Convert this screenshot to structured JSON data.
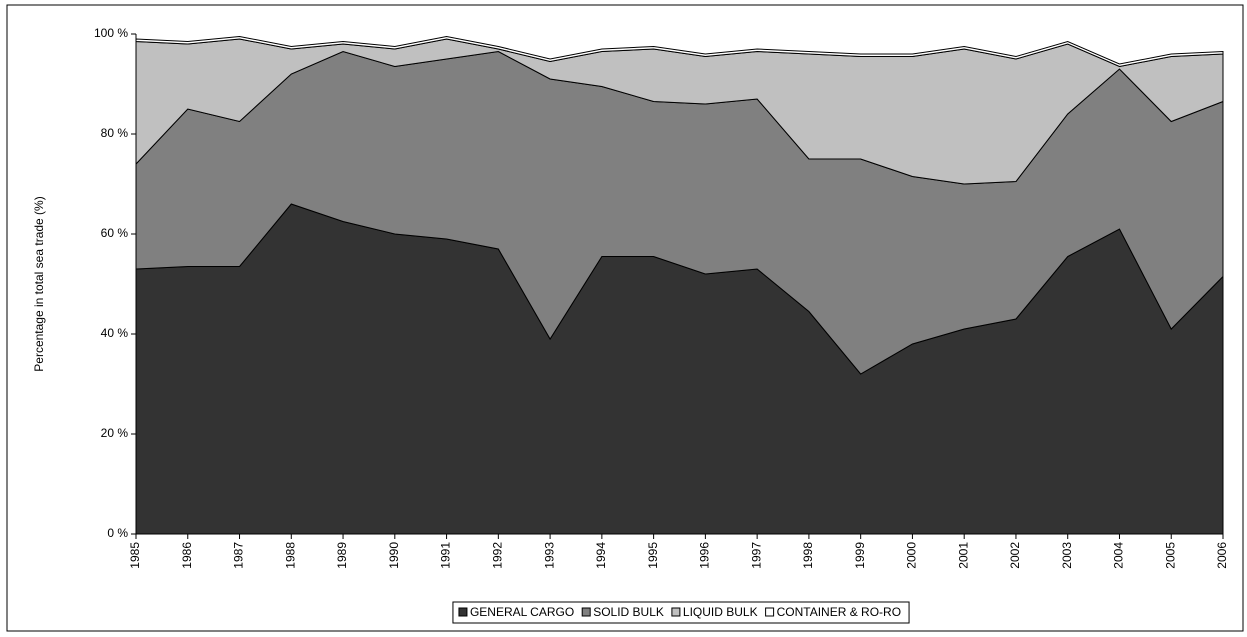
{
  "chart_data": {
    "type": "stacked_area",
    "y_label": "Percentage in total sea trade (%)",
    "categories": [
      "1985",
      "1986",
      "1987",
      "1988",
      "1989",
      "1990",
      "1991",
      "1992",
      "1993",
      "1994",
      "1995",
      "1996",
      "1997",
      "1998",
      "1999",
      "2000",
      "2001",
      "2002",
      "2003",
      "2004",
      "2005",
      "2006"
    ],
    "series": [
      {
        "name": "GENERAL CARGO",
        "color": "#333333",
        "values": [
          53,
          53.5,
          53.5,
          66,
          62.5,
          60,
          59,
          57,
          39,
          55.5,
          55.5,
          52,
          53,
          44.5,
          32,
          38,
          41,
          43,
          55.5,
          61,
          41,
          51.5
        ]
      },
      {
        "name": "SOLID BULK",
        "color": "#808080",
        "values": [
          21,
          31.5,
          29,
          26,
          34,
          33.5,
          36,
          39.5,
          52,
          34,
          31,
          34,
          34,
          30.5,
          43,
          33.5,
          29,
          27.5,
          28.5,
          32,
          41.5,
          35
        ]
      },
      {
        "name": "LIQUID BULK",
        "color": "#c0c0c0",
        "values": [
          24.5,
          13,
          16.5,
          5,
          1.5,
          3.5,
          4,
          0.5,
          3.5,
          7,
          10.5,
          9.5,
          9.5,
          21,
          20.5,
          24,
          27,
          24.5,
          14,
          0.5,
          13,
          9.5
        ]
      },
      {
        "name": "CONTAINER & RO-RO",
        "color": "#ffffff",
        "values": [
          0.5,
          0.5,
          0.5,
          0.5,
          0.5,
          0.5,
          0.5,
          0.5,
          0.5,
          0.5,
          0.5,
          0.5,
          0.5,
          0.5,
          0.5,
          0.5,
          0.5,
          0.5,
          0.5,
          0.5,
          0.5,
          0.5
        ]
      }
    ],
    "ylim": [
      0,
      100
    ],
    "yticks": [
      {
        "value": 0,
        "label": "0 %"
      },
      {
        "value": 20,
        "label": "20 %"
      },
      {
        "value": 40,
        "label": "40 %"
      },
      {
        "value": 60,
        "label": "60 %"
      },
      {
        "value": 80,
        "label": "80 %"
      },
      {
        "value": 100,
        "label": "100 %"
      }
    ],
    "legend": "bottom"
  }
}
